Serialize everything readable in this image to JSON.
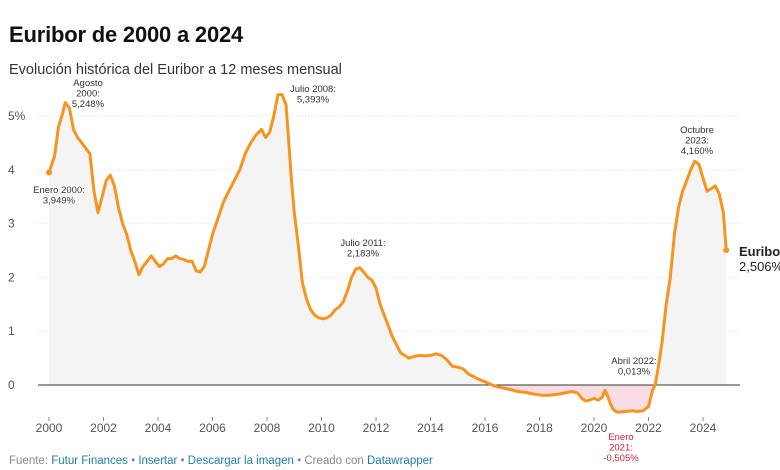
{
  "header": {
    "title": "Euribor de 2000 a 2024",
    "subtitle": "Evolución histórica del Euribor a 12 meses mensual"
  },
  "footer": {
    "source_label": "Fuente:",
    "source_link": "Futur Finances",
    "bullet": "•",
    "insert": "Insertar",
    "download": "Descargar la imagen",
    "created_with": "Creado con",
    "datawrapper": "Datawrapper"
  },
  "colors": {
    "line": "#f7931e",
    "negative_fill": "#f9dde3",
    "positive_fill": "#f4f4f4",
    "grid": "#dddddd",
    "zero_line": "#333333",
    "negative_label": "#c7243a"
  },
  "chart_data": {
    "type": "line",
    "title": "Euribor de 2000 a 2024",
    "subtitle": "Evolución histórica del Euribor a 12 meses mensual",
    "xlabel": "",
    "ylabel": "",
    "xlim": [
      2000,
      2025
    ],
    "ylim": [
      -0.5,
      5.5
    ],
    "x_ticks": [
      2000,
      2002,
      2004,
      2006,
      2008,
      2010,
      2012,
      2014,
      2016,
      2018,
      2020,
      2022,
      2024
    ],
    "x_tick_labels": [
      "2000",
      "2002",
      "2004",
      "2006",
      "2008",
      "2010",
      "2012",
      "2014",
      "2016",
      "2018",
      "2020",
      "2022",
      "2024"
    ],
    "y_ticks": [
      0,
      1,
      2,
      3,
      4,
      5
    ],
    "y_tick_labels": [
      "0",
      "1",
      "2",
      "3",
      "4",
      "5%"
    ],
    "grid": true,
    "series": [
      {
        "name": "Euribor",
        "end_label": "Euribor",
        "end_value_label": "2,506%",
        "x": [
          2000.0,
          2000.2,
          2000.35,
          2000.5,
          2000.6,
          2000.75,
          2000.9,
          2001.05,
          2001.2,
          2001.35,
          2001.5,
          2001.65,
          2001.8,
          2001.95,
          2002.1,
          2002.25,
          2002.4,
          2002.55,
          2002.7,
          2002.85,
          2003.0,
          2003.15,
          2003.3,
          2003.45,
          2003.6,
          2003.75,
          2003.9,
          2004.05,
          2004.2,
          2004.35,
          2004.5,
          2004.65,
          2004.8,
          2004.95,
          2005.1,
          2005.25,
          2005.4,
          2005.55,
          2005.7,
          2005.85,
          2006.0,
          2006.2,
          2006.4,
          2006.6,
          2006.8,
          2007.0,
          2007.2,
          2007.4,
          2007.6,
          2007.8,
          2007.95,
          2008.1,
          2008.25,
          2008.4,
          2008.55,
          2008.7,
          2008.8,
          2008.9,
          2009.0,
          2009.15,
          2009.3,
          2009.45,
          2009.6,
          2009.75,
          2009.9,
          2010.05,
          2010.2,
          2010.35,
          2010.5,
          2010.65,
          2010.8,
          2010.95,
          2011.1,
          2011.25,
          2011.4,
          2011.55,
          2011.7,
          2011.85,
          2012.0,
          2012.15,
          2012.3,
          2012.45,
          2012.6,
          2012.75,
          2012.9,
          2013.05,
          2013.2,
          2013.4,
          2013.6,
          2013.8,
          2014.0,
          2014.2,
          2014.4,
          2014.6,
          2014.8,
          2015.0,
          2015.2,
          2015.4,
          2015.6,
          2015.8,
          2016.0,
          2016.3,
          2016.6,
          2016.9,
          2017.2,
          2017.5,
          2017.8,
          2018.1,
          2018.4,
          2018.7,
          2019.0,
          2019.2,
          2019.4,
          2019.55,
          2019.7,
          2019.85,
          2020.0,
          2020.15,
          2020.3,
          2020.4,
          2020.5,
          2020.6,
          2020.7,
          2020.8,
          2020.9,
          2021.0,
          2021.2,
          2021.4,
          2021.6,
          2021.8,
          2022.0,
          2022.15,
          2022.25,
          2022.35,
          2022.5,
          2022.65,
          2022.8,
          2022.95,
          2023.1,
          2023.25,
          2023.4,
          2023.55,
          2023.7,
          2023.85,
          2024.0,
          2024.15,
          2024.3,
          2024.45,
          2024.6,
          2024.75,
          2024.85
        ],
        "y": [
          3.949,
          4.25,
          4.8,
          5.05,
          5.248,
          5.15,
          4.75,
          4.6,
          4.5,
          4.4,
          4.3,
          3.6,
          3.2,
          3.5,
          3.8,
          3.9,
          3.7,
          3.3,
          3.0,
          2.8,
          2.5,
          2.3,
          2.05,
          2.2,
          2.3,
          2.4,
          2.3,
          2.2,
          2.25,
          2.35,
          2.35,
          2.4,
          2.35,
          2.33,
          2.3,
          2.3,
          2.12,
          2.1,
          2.2,
          2.5,
          2.8,
          3.1,
          3.4,
          3.6,
          3.8,
          4.0,
          4.3,
          4.5,
          4.65,
          4.75,
          4.6,
          4.7,
          5.0,
          5.393,
          5.4,
          5.2,
          4.5,
          3.8,
          3.2,
          2.6,
          1.9,
          1.6,
          1.4,
          1.3,
          1.25,
          1.23,
          1.25,
          1.3,
          1.4,
          1.45,
          1.55,
          1.75,
          2.0,
          2.15,
          2.183,
          2.1,
          2.0,
          1.95,
          1.8,
          1.5,
          1.3,
          1.1,
          0.9,
          0.75,
          0.6,
          0.55,
          0.5,
          0.53,
          0.55,
          0.54,
          0.55,
          0.58,
          0.55,
          0.47,
          0.35,
          0.33,
          0.3,
          0.2,
          0.15,
          0.1,
          0.06,
          -0.01,
          -0.05,
          -0.08,
          -0.12,
          -0.14,
          -0.17,
          -0.19,
          -0.19,
          -0.17,
          -0.14,
          -0.12,
          -0.15,
          -0.25,
          -0.3,
          -0.28,
          -0.25,
          -0.28,
          -0.23,
          -0.1,
          -0.2,
          -0.35,
          -0.45,
          -0.49,
          -0.505,
          -0.5,
          -0.49,
          -0.48,
          -0.49,
          -0.48,
          -0.4,
          -0.1,
          0.013,
          0.3,
          0.8,
          1.5,
          2.0,
          2.8,
          3.3,
          3.6,
          3.8,
          4.0,
          4.16,
          4.1,
          3.85,
          3.6,
          3.65,
          3.7,
          3.55,
          3.2,
          2.506
        ]
      }
    ],
    "annotations": [
      {
        "lines": [
          "Enero 2000:",
          "3,949%"
        ],
        "x": 2000.0,
        "y": 3.949
      },
      {
        "lines": [
          "Agosto",
          "2000:",
          "5,248%"
        ],
        "x": 2000.6,
        "y": 5.248
      },
      {
        "lines": [
          "Julio 2008:",
          "5,393%"
        ],
        "x": 2008.5,
        "y": 5.393
      },
      {
        "lines": [
          "Julio 2011:",
          "2,183%"
        ],
        "x": 2011.5,
        "y": 2.183
      },
      {
        "lines": [
          "Abril 2022:",
          "0,013%"
        ],
        "x": 2022.3,
        "y": 0.013
      },
      {
        "lines": [
          "Enero",
          "2021:",
          "-0,505%"
        ],
        "x": 2021.0,
        "y": -0.505
      },
      {
        "lines": [
          "Octubre",
          "2023:",
          "4,160%"
        ],
        "x": 2023.75,
        "y": 4.16
      }
    ]
  }
}
